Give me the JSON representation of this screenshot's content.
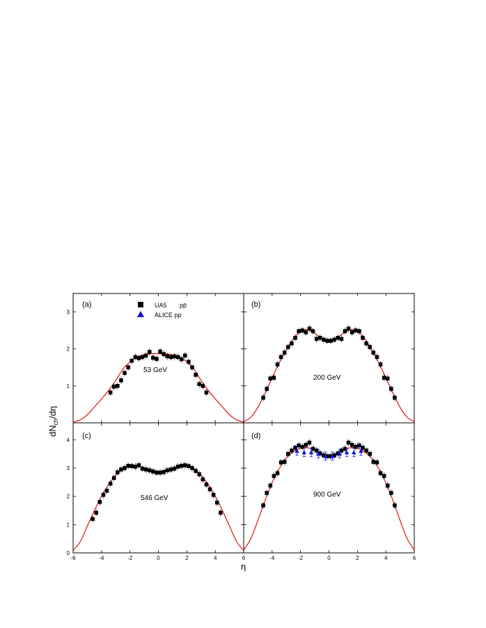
{
  "figure": {
    "ylabel": {
      "main": "dN",
      "sub": "ch",
      "tail": "/dη"
    },
    "xlabel": "η"
  },
  "legend": [
    {
      "label": "UA5",
      "extra": "pp̄",
      "marker": "square",
      "color": "#000000"
    },
    {
      "label": "ALICE pp",
      "extra": "",
      "marker": "triangle",
      "color": "#1010e0"
    }
  ],
  "colors": {
    "model": "#e00000",
    "ua5": "#000000",
    "alice": "#1010e0"
  },
  "chart_data": [
    {
      "type": "scatter",
      "panel": "(a)",
      "energy": "53 GeV",
      "xlim": [
        -6,
        6
      ],
      "ylim": [
        0,
        3.5
      ],
      "yticks": [
        1,
        2,
        3
      ],
      "series": [
        {
          "name": "UA5 pp̄",
          "marker": "square",
          "x": [
            -3.375,
            -3.125,
            -2.875,
            -2.625,
            -2.375,
            -2.125,
            -1.875,
            -1.625,
            -1.375,
            -1.125,
            -0.875,
            -0.625,
            -0.375,
            -0.125,
            0.125,
            0.375,
            0.625,
            0.875,
            1.125,
            1.375,
            1.625,
            1.875,
            2.125,
            2.375,
            2.625,
            2.875,
            3.125,
            3.375
          ],
          "y": [
            0.82,
            0.98,
            1.0,
            1.15,
            1.35,
            1.5,
            1.68,
            1.78,
            1.75,
            1.78,
            1.82,
            1.92,
            1.76,
            1.73,
            1.93,
            1.86,
            1.8,
            1.78,
            1.8,
            1.78,
            1.72,
            1.82,
            1.65,
            1.5,
            1.3,
            1.05,
            1.0,
            0.82
          ]
        },
        {
          "name": "model",
          "x": [
            -6,
            -5.5,
            -5,
            -4.5,
            -4,
            -3.5,
            -3,
            -2.5,
            -2,
            -1.5,
            -1,
            -0.5,
            0,
            0.5,
            1,
            1.5,
            2,
            2.5,
            3,
            3.5,
            4,
            4.5,
            5,
            5.5,
            6
          ],
          "y": [
            0.02,
            0.08,
            0.22,
            0.43,
            0.65,
            0.88,
            1.15,
            1.45,
            1.65,
            1.78,
            1.84,
            1.87,
            1.87,
            1.87,
            1.84,
            1.78,
            1.65,
            1.45,
            1.15,
            0.88,
            0.65,
            0.43,
            0.22,
            0.08,
            0.02
          ]
        }
      ]
    },
    {
      "type": "scatter",
      "panel": "(b)",
      "energy": "200 GeV",
      "xlim": [
        -6,
        6
      ],
      "ylim": [
        0,
        3.5
      ],
      "yticks": [],
      "series": [
        {
          "name": "UA5 pp̄",
          "marker": "square",
          "x": [
            -4.625,
            -4.375,
            -4.125,
            -3.875,
            -3.625,
            -3.375,
            -3.125,
            -2.875,
            -2.625,
            -2.375,
            -2.125,
            -1.875,
            -1.625,
            -1.375,
            -1.125,
            -0.875,
            -0.625,
            -0.375,
            -0.125,
            0.125,
            0.375,
            0.625,
            0.875,
            1.125,
            1.375,
            1.625,
            1.875,
            2.125,
            2.375,
            2.625,
            2.875,
            3.125,
            3.375,
            3.625,
            3.875,
            4.125,
            4.375,
            4.625
          ],
          "y": [
            0.68,
            0.92,
            1.2,
            1.22,
            1.58,
            1.78,
            1.9,
            2.05,
            2.15,
            2.3,
            2.48,
            2.5,
            2.45,
            2.55,
            2.48,
            2.27,
            2.3,
            2.25,
            2.22,
            2.22,
            2.25,
            2.3,
            2.27,
            2.48,
            2.55,
            2.45,
            2.5,
            2.48,
            2.3,
            2.15,
            2.05,
            1.9,
            1.78,
            1.58,
            1.22,
            1.2,
            0.92,
            0.68
          ]
        },
        {
          "name": "model",
          "x": [
            -6,
            -5.5,
            -5,
            -4.5,
            -4,
            -3.5,
            -3,
            -2.5,
            -2,
            -1.5,
            -1,
            -0.5,
            0,
            0.5,
            1,
            1.5,
            2,
            2.5,
            3,
            3.5,
            4,
            4.5,
            5,
            5.5,
            6
          ],
          "y": [
            0.03,
            0.15,
            0.42,
            0.8,
            1.22,
            1.62,
            1.98,
            2.28,
            2.47,
            2.52,
            2.42,
            2.28,
            2.22,
            2.28,
            2.42,
            2.52,
            2.47,
            2.28,
            1.98,
            1.62,
            1.22,
            0.8,
            0.42,
            0.15,
            0.03
          ]
        }
      ]
    },
    {
      "type": "scatter",
      "panel": "(c)",
      "energy": "546 GeV",
      "xlim": [
        -6,
        6
      ],
      "ylim": [
        0,
        4.6
      ],
      "yticks": [
        0,
        1,
        2,
        3,
        4
      ],
      "series": [
        {
          "name": "UA5 pp̄",
          "marker": "square",
          "x": [
            -4.625,
            -4.375,
            -4.125,
            -3.875,
            -3.625,
            -3.375,
            -3.125,
            -2.875,
            -2.625,
            -2.375,
            -2.125,
            -1.875,
            -1.625,
            -1.375,
            -1.125,
            -0.875,
            -0.625,
            -0.375,
            -0.125,
            0.125,
            0.375,
            0.625,
            0.875,
            1.125,
            1.375,
            1.625,
            1.875,
            2.125,
            2.375,
            2.625,
            2.875,
            3.125,
            3.375,
            3.625,
            3.875,
            4.125,
            4.375
          ],
          "y": [
            1.2,
            1.42,
            1.8,
            2.05,
            2.2,
            2.45,
            2.65,
            2.85,
            2.95,
            3.0,
            3.08,
            3.07,
            3.05,
            3.1,
            2.98,
            2.95,
            2.92,
            2.88,
            2.84,
            2.84,
            2.86,
            2.92,
            2.95,
            2.98,
            3.05,
            3.08,
            3.1,
            3.07,
            3.0,
            2.9,
            2.78,
            2.6,
            2.42,
            2.25,
            2.05,
            1.78,
            1.42
          ]
        },
        {
          "name": "model",
          "x": [
            -6,
            -5.5,
            -5,
            -4.5,
            -4,
            -3.5,
            -3,
            -2.5,
            -2,
            -1.5,
            -1,
            -0.5,
            0,
            0.5,
            1,
            1.5,
            2,
            2.5,
            3,
            3.5,
            4,
            4.5,
            5,
            5.5,
            6
          ],
          "y": [
            0.08,
            0.4,
            0.95,
            1.5,
            2.0,
            2.42,
            2.75,
            2.97,
            3.08,
            3.08,
            2.98,
            2.88,
            2.85,
            2.88,
            2.98,
            3.08,
            3.08,
            2.97,
            2.75,
            2.42,
            2.0,
            1.5,
            0.95,
            0.4,
            0.08
          ]
        }
      ]
    },
    {
      "type": "scatter",
      "panel": "(d)",
      "energy": "900 GeV",
      "xlim": [
        -6,
        6
      ],
      "ylim": [
        0,
        4.6
      ],
      "yticks": [],
      "series": [
        {
          "name": "UA5 pp̄",
          "marker": "square",
          "x": [
            -4.625,
            -4.375,
            -4.125,
            -3.875,
            -3.625,
            -3.375,
            -3.125,
            -2.875,
            -2.625,
            -2.375,
            -2.125,
            -1.875,
            -1.625,
            -1.375,
            -1.125,
            -0.875,
            -0.625,
            -0.375,
            -0.125,
            0.125,
            0.375,
            0.625,
            0.875,
            1.125,
            1.375,
            1.625,
            1.875,
            2.125,
            2.375,
            2.625,
            2.875,
            3.125,
            3.375,
            3.625,
            3.875,
            4.125,
            4.375,
            4.625
          ],
          "y": [
            1.68,
            2.12,
            2.38,
            2.72,
            2.82,
            3.2,
            3.22,
            3.5,
            3.62,
            3.72,
            3.8,
            3.75,
            3.82,
            3.9,
            3.68,
            3.62,
            3.52,
            3.45,
            3.42,
            3.42,
            3.45,
            3.52,
            3.62,
            3.68,
            3.9,
            3.82,
            3.75,
            3.8,
            3.72,
            3.62,
            3.5,
            3.22,
            3.2,
            2.82,
            2.72,
            2.38,
            2.12,
            1.68
          ]
        },
        {
          "name": "ALICE pp",
          "marker": "triangle",
          "x": [
            -2.25,
            -1.75,
            -1.25,
            -0.75,
            -0.25,
            0.25,
            0.75,
            1.25,
            1.75,
            2.25
          ],
          "y": [
            3.6,
            3.55,
            3.55,
            3.5,
            3.42,
            3.42,
            3.5,
            3.55,
            3.55,
            3.6
          ]
        },
        {
          "name": "model",
          "x": [
            -6,
            -5.5,
            -5,
            -4.5,
            -4,
            -3.5,
            -3,
            -2.5,
            -2,
            -1.5,
            -1,
            -0.5,
            0,
            0.5,
            1,
            1.5,
            2,
            2.5,
            3,
            3.5,
            4,
            4.5,
            5,
            5.5,
            6
          ],
          "y": [
            0.1,
            0.5,
            1.15,
            1.85,
            2.48,
            2.98,
            3.35,
            3.58,
            3.7,
            3.72,
            3.62,
            3.48,
            3.44,
            3.48,
            3.62,
            3.72,
            3.7,
            3.58,
            3.35,
            2.98,
            2.48,
            1.85,
            1.15,
            0.5,
            0.1
          ]
        }
      ]
    }
  ],
  "xticks": [
    -6,
    -4,
    -2,
    0,
    2,
    4,
    6
  ]
}
